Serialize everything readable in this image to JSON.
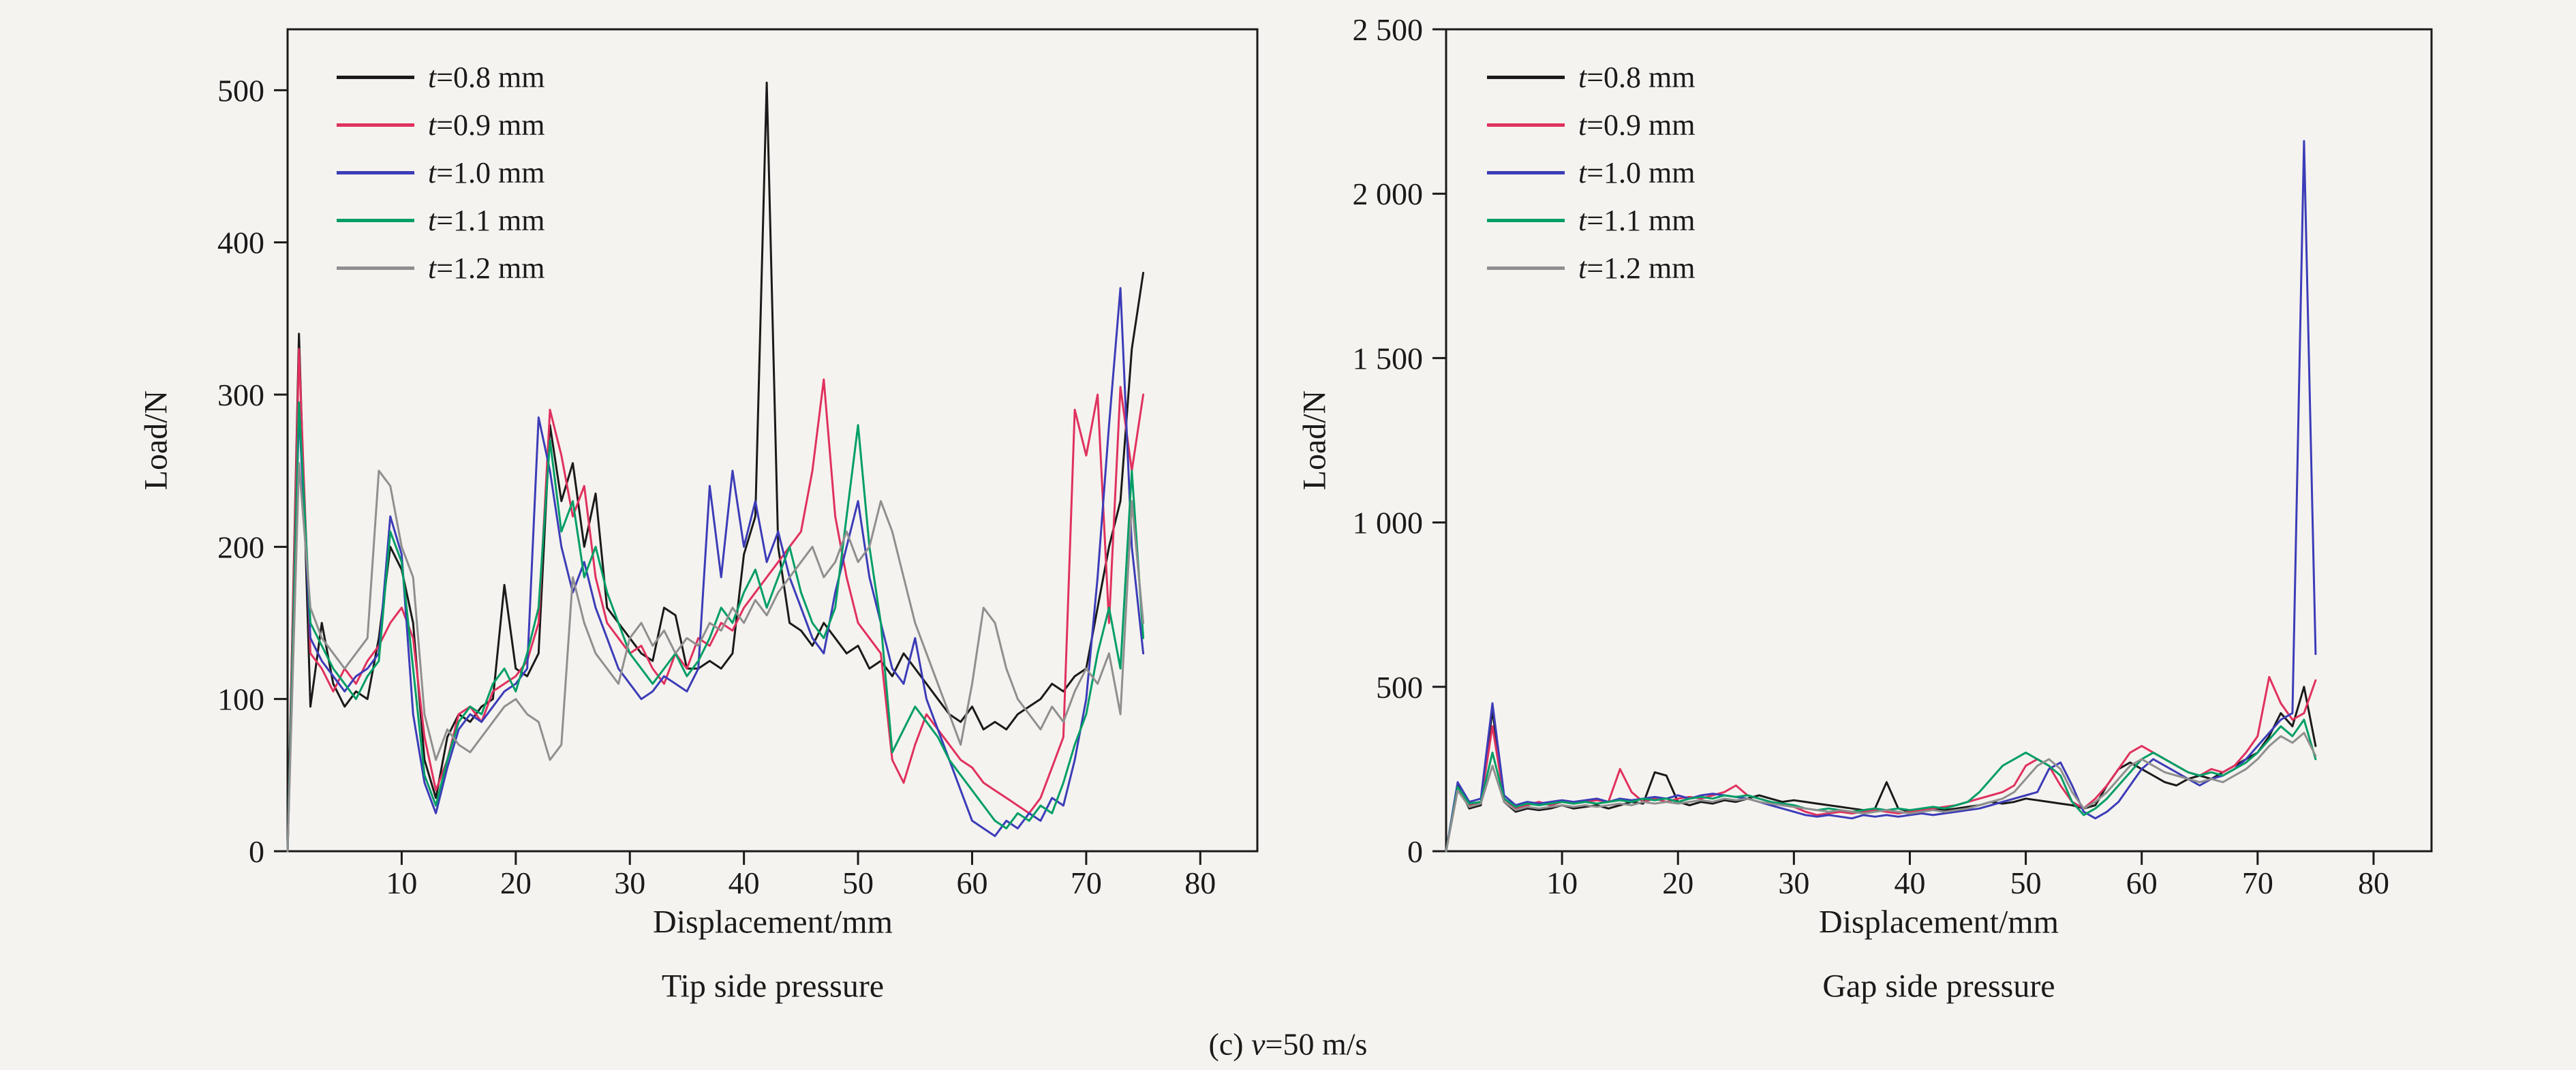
{
  "figure": {
    "background": "#f5f3ef",
    "ink": "#1a1a1a",
    "caption": {
      "prefix": "(c) ",
      "var": "v",
      "rest": "=50 m/s"
    }
  },
  "chart_data": [
    {
      "type": "line",
      "title": "Tip side pressure",
      "xlabel": "Displacement/mm",
      "ylabel": "Load/N",
      "xlim": [
        0,
        85
      ],
      "ylim": [
        0,
        540
      ],
      "grid": false,
      "legend_position": "top-left",
      "xticks": [
        {
          "value": 10,
          "label": "10"
        },
        {
          "value": 20,
          "label": "20"
        },
        {
          "value": 30,
          "label": "30"
        },
        {
          "value": 40,
          "label": "40"
        },
        {
          "value": 50,
          "label": "50"
        },
        {
          "value": 60,
          "label": "60"
        },
        {
          "value": 70,
          "label": "70"
        },
        {
          "value": 80,
          "label": "80"
        }
      ],
      "yticks": [
        {
          "value": 0,
          "label": "0"
        },
        {
          "value": 100,
          "label": "100"
        },
        {
          "value": 200,
          "label": "200"
        },
        {
          "value": 300,
          "label": "300"
        },
        {
          "value": 400,
          "label": "400"
        },
        {
          "value": 500,
          "label": "500"
        }
      ],
      "series": [
        {
          "label": "t=0.8 mm",
          "label_var": "t",
          "label_rest": "=0.8 mm",
          "color": "#1a1a1a",
          "x_start": 0,
          "x_step": 1,
          "y": [
            0,
            340,
            95,
            150,
            110,
            95,
            105,
            100,
            140,
            200,
            185,
            150,
            60,
            35,
            75,
            90,
            85,
            95,
            100,
            175,
            120,
            115,
            130,
            280,
            230,
            255,
            200,
            235,
            160,
            150,
            140,
            130,
            125,
            160,
            155,
            120,
            120,
            125,
            120,
            130,
            195,
            220,
            505,
            200,
            150,
            145,
            135,
            150,
            140,
            130,
            135,
            120,
            125,
            115,
            130,
            120,
            110,
            100,
            90,
            85,
            95,
            80,
            85,
            80,
            90,
            95,
            100,
            110,
            105,
            115,
            120,
            160,
            200,
            230,
            330,
            380
          ]
        },
        {
          "label": "t=0.9 mm",
          "label_var": "t",
          "label_rest": "=0.9 mm",
          "color": "#e0315e",
          "x_start": 0,
          "x_step": 1,
          "y": [
            0,
            330,
            130,
            120,
            105,
            120,
            110,
            125,
            135,
            150,
            160,
            140,
            75,
            40,
            60,
            90,
            95,
            85,
            105,
            110,
            115,
            125,
            150,
            290,
            260,
            220,
            240,
            180,
            150,
            140,
            130,
            135,
            120,
            110,
            130,
            120,
            140,
            135,
            150,
            145,
            160,
            170,
            180,
            190,
            200,
            210,
            250,
            310,
            220,
            180,
            150,
            140,
            130,
            60,
            45,
            70,
            90,
            80,
            70,
            60,
            55,
            45,
            40,
            35,
            30,
            25,
            35,
            55,
            75,
            290,
            260,
            300,
            150,
            305,
            250,
            300
          ]
        },
        {
          "label": "t=1.0 mm",
          "label_var": "t",
          "label_rest": "=1.0 mm",
          "color": "#3c3cb8",
          "x_start": 0,
          "x_step": 1,
          "y": [
            0,
            290,
            140,
            125,
            115,
            105,
            115,
            120,
            130,
            220,
            195,
            90,
            45,
            25,
            55,
            80,
            90,
            85,
            95,
            105,
            110,
            120,
            285,
            250,
            200,
            170,
            190,
            160,
            140,
            120,
            110,
            100,
            105,
            115,
            110,
            105,
            120,
            240,
            180,
            250,
            200,
            230,
            190,
            210,
            180,
            160,
            140,
            130,
            170,
            200,
            230,
            180,
            150,
            120,
            110,
            140,
            100,
            80,
            60,
            40,
            20,
            15,
            10,
            20,
            15,
            25,
            20,
            35,
            30,
            60,
            100,
            180,
            280,
            370,
            200,
            130
          ]
        },
        {
          "label": "t=1.1 mm",
          "label_var": "t",
          "label_rest": "=1.1 mm",
          "color": "#009e66",
          "x_start": 0,
          "x_step": 1,
          "y": [
            0,
            295,
            150,
            135,
            120,
            110,
            100,
            115,
            125,
            210,
            190,
            120,
            50,
            30,
            60,
            85,
            95,
            90,
            110,
            120,
            105,
            130,
            160,
            270,
            210,
            230,
            180,
            200,
            170,
            150,
            130,
            120,
            110,
            120,
            130,
            115,
            125,
            140,
            160,
            150,
            170,
            185,
            160,
            180,
            200,
            170,
            150,
            140,
            160,
            220,
            280,
            200,
            150,
            65,
            80,
            95,
            85,
            75,
            60,
            50,
            40,
            30,
            20,
            15,
            25,
            20,
            30,
            25,
            45,
            70,
            90,
            130,
            160,
            120,
            250,
            140
          ]
        },
        {
          "label": "t=1.2 mm",
          "label_var": "t",
          "label_rest": "=1.2 mm",
          "color": "#8f8f8f",
          "x_start": 0,
          "x_step": 1,
          "y": [
            0,
            255,
            160,
            140,
            130,
            120,
            130,
            140,
            250,
            240,
            200,
            180,
            90,
            60,
            80,
            70,
            65,
            75,
            85,
            95,
            100,
            90,
            85,
            60,
            70,
            180,
            150,
            130,
            120,
            110,
            140,
            150,
            135,
            145,
            130,
            140,
            135,
            150,
            145,
            160,
            150,
            165,
            155,
            170,
            180,
            190,
            200,
            180,
            190,
            210,
            190,
            200,
            230,
            210,
            180,
            150,
            130,
            110,
            90,
            70,
            110,
            160,
            150,
            120,
            100,
            90,
            80,
            95,
            85,
            105,
            120,
            110,
            130,
            90,
            230,
            150
          ]
        }
      ]
    },
    {
      "type": "line",
      "title": "Gap side pressure",
      "xlabel": "Displacement/mm",
      "ylabel": "Load/N",
      "xlim": [
        0,
        85
      ],
      "ylim": [
        0,
        2500
      ],
      "grid": false,
      "legend_position": "top-left",
      "xticks": [
        {
          "value": 10,
          "label": "10"
        },
        {
          "value": 20,
          "label": "20"
        },
        {
          "value": 30,
          "label": "30"
        },
        {
          "value": 40,
          "label": "40"
        },
        {
          "value": 50,
          "label": "50"
        },
        {
          "value": 60,
          "label": "60"
        },
        {
          "value": 70,
          "label": "70"
        },
        {
          "value": 80,
          "label": "80"
        }
      ],
      "yticks": [
        {
          "value": 0,
          "label": "0"
        },
        {
          "value": 500,
          "label": "500"
        },
        {
          "value": 1000,
          "label": "1 000"
        },
        {
          "value": 1500,
          "label": "1 500"
        },
        {
          "value": 2000,
          "label": "2 000"
        },
        {
          "value": 2500,
          "label": "2 500"
        }
      ],
      "series": [
        {
          "label": "t=0.8 mm",
          "label_var": "t",
          "label_rest": "=0.8 mm",
          "color": "#1a1a1a",
          "x_start": 0,
          "x_step": 1,
          "y": [
            0,
            200,
            130,
            140,
            430,
            150,
            120,
            130,
            125,
            130,
            140,
            130,
            135,
            140,
            130,
            140,
            150,
            145,
            240,
            230,
            150,
            140,
            150,
            145,
            155,
            150,
            160,
            170,
            160,
            150,
            155,
            150,
            145,
            140,
            135,
            130,
            125,
            130,
            210,
            130,
            120,
            125,
            130,
            125,
            130,
            135,
            140,
            150,
            145,
            150,
            160,
            155,
            150,
            145,
            140,
            130,
            140,
            200,
            250,
            270,
            250,
            230,
            210,
            200,
            220,
            230,
            220,
            240,
            260,
            280,
            300,
            350,
            420,
            380,
            500,
            320
          ]
        },
        {
          "label": "t=0.9 mm",
          "label_var": "t",
          "label_rest": "=0.9 mm",
          "color": "#e0315e",
          "x_start": 0,
          "x_step": 1,
          "y": [
            0,
            190,
            140,
            150,
            380,
            160,
            130,
            140,
            150,
            140,
            150,
            145,
            150,
            155,
            150,
            250,
            180,
            150,
            160,
            150,
            160,
            165,
            160,
            170,
            180,
            200,
            170,
            160,
            150,
            140,
            135,
            120,
            110,
            115,
            120,
            115,
            120,
            125,
            120,
            115,
            120,
            125,
            130,
            135,
            140,
            150,
            160,
            170,
            180,
            200,
            260,
            280,
            260,
            200,
            150,
            130,
            160,
            200,
            250,
            300,
            320,
            300,
            280,
            260,
            240,
            230,
            250,
            240,
            260,
            300,
            350,
            530,
            450,
            400,
            420,
            520
          ]
        },
        {
          "label": "t=1.0 mm",
          "label_var": "t",
          "label_rest": "=1.0 mm",
          "color": "#3c3cb8",
          "x_start": 0,
          "x_step": 1,
          "y": [
            0,
            210,
            150,
            160,
            450,
            170,
            140,
            150,
            145,
            150,
            155,
            150,
            155,
            160,
            150,
            160,
            155,
            160,
            165,
            160,
            170,
            160,
            170,
            175,
            170,
            165,
            160,
            150,
            140,
            130,
            120,
            110,
            105,
            110,
            105,
            100,
            110,
            105,
            110,
            105,
            110,
            115,
            110,
            115,
            120,
            125,
            130,
            140,
            150,
            160,
            170,
            180,
            250,
            270,
            200,
            120,
            100,
            120,
            150,
            200,
            250,
            280,
            260,
            240,
            220,
            200,
            220,
            230,
            250,
            280,
            320,
            360,
            400,
            420,
            2160,
            600
          ]
        },
        {
          "label": "t=1.1 mm",
          "label_var": "t",
          "label_rest": "=1.1 mm",
          "color": "#009e66",
          "x_start": 0,
          "x_step": 1,
          "y": [
            0,
            195,
            145,
            150,
            300,
            160,
            135,
            145,
            140,
            145,
            150,
            145,
            150,
            145,
            150,
            155,
            150,
            160,
            155,
            160,
            150,
            160,
            165,
            160,
            170,
            165,
            170,
            160,
            150,
            145,
            140,
            130,
            125,
            130,
            125,
            120,
            125,
            130,
            125,
            130,
            125,
            130,
            135,
            130,
            140,
            150,
            180,
            220,
            260,
            280,
            300,
            280,
            260,
            230,
            150,
            110,
            130,
            160,
            200,
            240,
            280,
            300,
            280,
            260,
            240,
            230,
            240,
            230,
            250,
            270,
            300,
            340,
            380,
            350,
            400,
            280
          ]
        },
        {
          "label": "t=1.2 mm",
          "label_var": "t",
          "label_rest": "=1.2 mm",
          "color": "#8f8f8f",
          "x_start": 0,
          "x_step": 1,
          "y": [
            0,
            185,
            135,
            145,
            260,
            150,
            125,
            135,
            130,
            135,
            140,
            135,
            140,
            135,
            140,
            145,
            140,
            150,
            145,
            150,
            145,
            150,
            155,
            150,
            160,
            155,
            160,
            150,
            145,
            140,
            135,
            130,
            125,
            120,
            125,
            120,
            115,
            120,
            125,
            120,
            115,
            120,
            125,
            120,
            125,
            130,
            140,
            150,
            160,
            180,
            220,
            260,
            280,
            250,
            180,
            130,
            150,
            180,
            220,
            260,
            280,
            260,
            240,
            230,
            220,
            210,
            220,
            210,
            230,
            250,
            280,
            320,
            350,
            330,
            360,
            290
          ]
        }
      ]
    }
  ]
}
